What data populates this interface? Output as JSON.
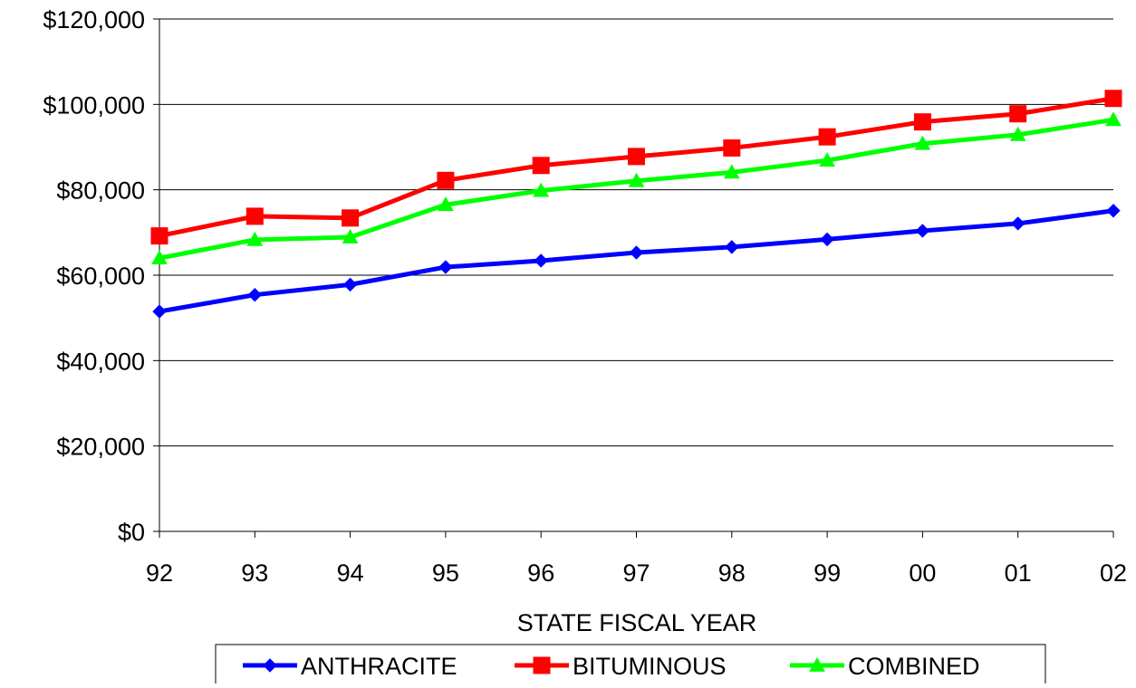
{
  "chart_data": {
    "type": "line",
    "title": "",
    "xlabel": "STATE FISCAL YEAR",
    "ylabel": "",
    "categories": [
      "92",
      "93",
      "94",
      "95",
      "96",
      "97",
      "98",
      "99",
      "00",
      "01",
      "02"
    ],
    "yticks": [
      "$0",
      "$20,000",
      "$40,000",
      "$60,000",
      "$80,000",
      "$100,000",
      "$120,000"
    ],
    "ylim": [
      0,
      120000
    ],
    "grid": true,
    "legend_position": "bottom",
    "series": [
      {
        "name": "ANTHRACITE",
        "color": "#0000ff",
        "marker": "diamond",
        "values": [
          51500,
          55400,
          57800,
          61900,
          63400,
          65300,
          66600,
          68400,
          70400,
          72100,
          75100
        ]
      },
      {
        "name": "BITUMINOUS",
        "color": "#ff0000",
        "marker": "square",
        "values": [
          69200,
          73800,
          73400,
          82200,
          85700,
          87800,
          89800,
          92400,
          95900,
          97800,
          101400
        ]
      },
      {
        "name": "COMBINED",
        "color": "#00ff00",
        "marker": "triangle",
        "values": [
          64000,
          68300,
          68900,
          76500,
          79800,
          82100,
          84100,
          86900,
          90800,
          92900,
          96400
        ]
      }
    ]
  }
}
